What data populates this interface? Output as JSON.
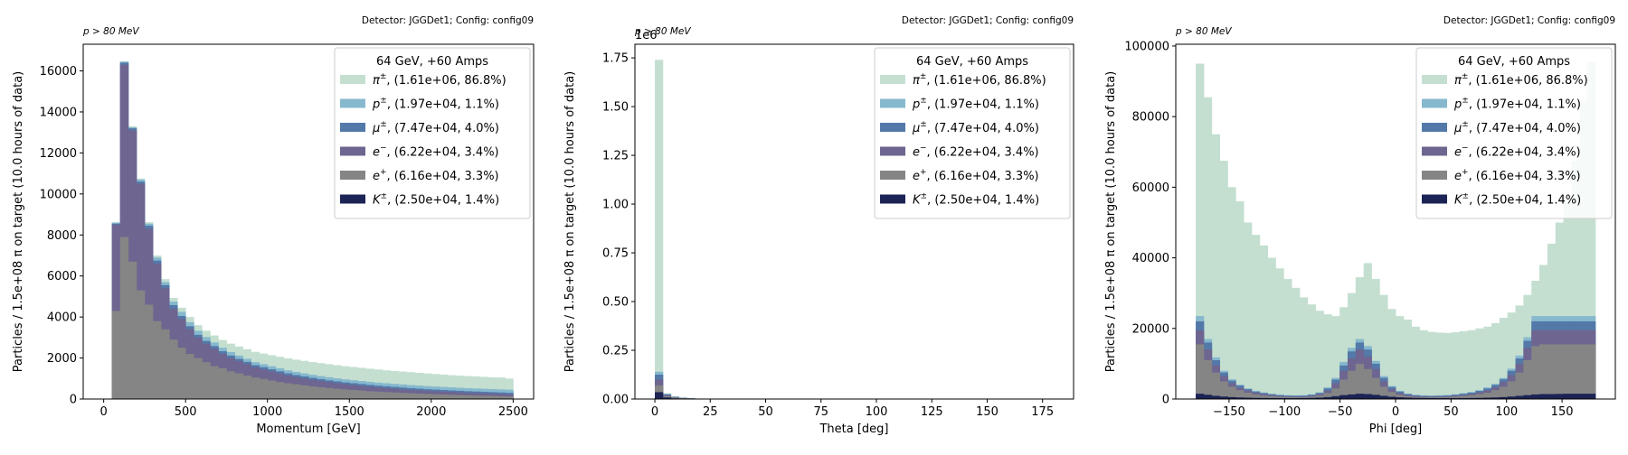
{
  "colors": {
    "pi": "#c4dfd0",
    "p": "#86b8ce",
    "mu": "#5379a9",
    "em": "#6e6590",
    "ep": "#858585",
    "k": "#1c2355"
  },
  "legend": {
    "title": "64 GeV, +60 Amps",
    "entries": [
      {
        "key": "pi",
        "sym": "π",
        "sup": "±",
        "text": ", (1.61e+06, 86.8%)"
      },
      {
        "key": "p",
        "sym": "p",
        "sup": "±",
        "text": ", (1.97e+04, 1.1%)"
      },
      {
        "key": "mu",
        "sym": "μ",
        "sup": "±",
        "text": ", (7.47e+04, 4.0%)"
      },
      {
        "key": "em",
        "sym": "e",
        "sup": "−",
        "text": ", (6.22e+04, 3.4%)"
      },
      {
        "key": "ep",
        "sym": "e",
        "sup": "+",
        "text": ", (6.16e+04, 3.3%)"
      },
      {
        "key": "k",
        "sym": "K",
        "sup": "±",
        "text": ", (2.50e+04, 1.4%)"
      }
    ]
  },
  "panels": {
    "cut_label": "p > 80 MeV",
    "detector_label": "Detector: JGGDet1; Config: config09",
    "ylabel": "Particles / 1.5e+08 π on target (10.0 hours of data)"
  },
  "chart_data": [
    {
      "type": "bar",
      "title": "",
      "xlabel": "Momentum [GeV]",
      "ylabel": "Particles / 1.5e+08 π on target (10.0 hours of data)",
      "xlim": [
        -125,
        2625
      ],
      "ylim": [
        0,
        17300
      ],
      "xticks": [
        0,
        500,
        1000,
        1500,
        2000,
        2500
      ],
      "yticks": [
        0,
        2000,
        4000,
        6000,
        8000,
        10000,
        12000,
        14000,
        16000
      ],
      "bin_edges_start": 50,
      "bin_width": 50,
      "stack_order": [
        "ep",
        "em",
        "mu",
        "p",
        "pi"
      ],
      "series_totals_cumulative": {
        "ep": [
          4300,
          7900,
          6700,
          5300,
          4600,
          3800,
          3400,
          2900,
          2500,
          2200,
          2000,
          1800,
          1600,
          1500,
          1350,
          1250,
          1150,
          1050,
          980,
          900,
          830,
          770,
          720,
          670,
          620,
          580,
          540,
          500,
          470,
          440,
          410,
          380,
          360,
          340,
          320,
          300,
          280,
          265,
          250,
          235,
          220,
          205,
          195,
          180,
          170,
          160,
          150,
          140,
          130
        ],
        "em": [
          8500,
          16300,
          13100,
          10500,
          8300,
          6600,
          5400,
          4400,
          3900,
          3400,
          3000,
          2700,
          2450,
          2200,
          2000,
          1850,
          1700,
          1550,
          1450,
          1350,
          1250,
          1150,
          1070,
          1000,
          940,
          880,
          820,
          770,
          720,
          680,
          640,
          600,
          565,
          530,
          500,
          470,
          445,
          420,
          400,
          380,
          360,
          340,
          320,
          305,
          290,
          275,
          260,
          245,
          230
        ],
        "mu": [
          8550,
          16400,
          13200,
          10600,
          8450,
          6750,
          5550,
          4580,
          4050,
          3550,
          3130,
          2830,
          2580,
          2330,
          2120,
          1960,
          1810,
          1650,
          1550,
          1450,
          1350,
          1250,
          1170,
          1100,
          1030,
          970,
          910,
          860,
          810,
          770,
          730,
          690,
          650,
          620,
          590,
          560,
          530,
          505,
          480,
          460,
          440,
          420,
          400,
          380,
          365,
          350,
          335,
          320,
          305
        ],
        "p": [
          8600,
          16450,
          13250,
          10700,
          8550,
          6900,
          5700,
          4750,
          4250,
          3750,
          3330,
          3020,
          2760,
          2500,
          2290,
          2120,
          1960,
          1800,
          1700,
          1600,
          1500,
          1400,
          1320,
          1250,
          1180,
          1120,
          1060,
          1010,
          960,
          920,
          880,
          840,
          800,
          770,
          740,
          710,
          680,
          655,
          630,
          610,
          590,
          570,
          550,
          530,
          515,
          500,
          485,
          470,
          455
        ],
        "pi": [
          8620,
          16470,
          13300,
          10750,
          8620,
          7000,
          5850,
          4930,
          4450,
          4000,
          3600,
          3330,
          3100,
          2880,
          2700,
          2560,
          2430,
          2300,
          2220,
          2140,
          2060,
          1980,
          1920,
          1860,
          1800,
          1750,
          1700,
          1650,
          1600,
          1560,
          1520,
          1480,
          1440,
          1400,
          1370,
          1340,
          1310,
          1280,
          1250,
          1220,
          1190,
          1160,
          1140,
          1120,
          1100,
          1080,
          1060,
          1050,
          1000
        ]
      }
    },
    {
      "type": "bar",
      "title": "",
      "xlabel": "Theta [deg]",
      "ylabel": "Particles / 1.5e+08 π on target (10.0 hours of data)",
      "xlim": [
        -9,
        189
      ],
      "ylim": [
        0,
        1820000
      ],
      "xticks": [
        0,
        25,
        50,
        75,
        100,
        125,
        150,
        175
      ],
      "yticks": [
        0,
        250000,
        500000,
        750000,
        1000000,
        1250000,
        1500000,
        1750000
      ],
      "ytick_labels": [
        "0.00",
        "0.25",
        "0.50",
        "0.75",
        "1.00",
        "1.25",
        "1.50",
        "1.75"
      ],
      "offset_label": "1e6",
      "bin_edges_start": 0,
      "bin_width": 3.6,
      "stack_order": [
        "k",
        "ep",
        "em",
        "mu",
        "p",
        "pi"
      ],
      "series_totals_cumulative": {
        "k": [
          35000,
          8000,
          3000,
          1500,
          800,
          400,
          200,
          100,
          50,
          0
        ],
        "ep": [
          70000,
          15000,
          7000,
          4000,
          2500,
          1500,
          800,
          400,
          200,
          0
        ],
        "em": [
          100000,
          20000,
          9000,
          5000,
          3000,
          1800,
          1000,
          500,
          250,
          0
        ],
        "mu": [
          125000,
          24000,
          11000,
          6000,
          3600,
          2200,
          1200,
          600,
          300,
          0
        ],
        "p": [
          140000,
          26000,
          12000,
          6500,
          3900,
          2400,
          1300,
          650,
          320,
          0
        ],
        "pi": [
          1740000,
          30000,
          15000,
          8000,
          4500,
          2600,
          1400,
          700,
          350,
          0
        ]
      }
    },
    {
      "type": "bar",
      "title": "",
      "xlabel": "Phi [deg]",
      "ylabel": "Particles / 1.5e+08 π on target (10.0 hours of data)",
      "xlim": [
        -198,
        198
      ],
      "ylim": [
        0,
        100500
      ],
      "xticks": [
        -150,
        -100,
        -50,
        0,
        50,
        100,
        150
      ],
      "xtick_labels": [
        "−150",
        "−100",
        "−50",
        "0",
        "50",
        "100",
        "150"
      ],
      "yticks": [
        0,
        20000,
        40000,
        60000,
        80000,
        100000
      ],
      "bin_edges_start": -180,
      "bin_width": 7.2,
      "stack_order": [
        "k",
        "ep",
        "em",
        "mu",
        "p",
        "pi"
      ],
      "series_totals_cumulative": {
        "k": [
          1500,
          1200,
          900,
          700,
          550,
          450,
          380,
          330,
          300,
          280,
          270,
          260,
          260,
          280,
          320,
          400,
          550,
          800,
          1100,
          1300,
          1500,
          1400,
          1200,
          900,
          650,
          500,
          400,
          330,
          290,
          270,
          260,
          260,
          270,
          280,
          300,
          330,
          380,
          450,
          550,
          700,
          900,
          1100,
          1300,
          1400,
          1400,
          1450,
          1500,
          1500,
          1500,
          1500
        ],
        "ep": [
          15500,
          11000,
          7500,
          5000,
          3500,
          2500,
          1800,
          1300,
          1000,
          800,
          650,
          550,
          500,
          550,
          700,
          1000,
          1700,
          3000,
          5500,
          8000,
          10000,
          8500,
          6000,
          3500,
          2000,
          1200,
          800,
          600,
          500,
          480,
          500,
          580,
          700,
          900,
          1100,
          1400,
          1800,
          2500,
          3500,
          5000,
          7500,
          11000,
          15000,
          15500,
          15500,
          15500,
          15500,
          15500,
          15500,
          15500
        ],
        "em": [
          19500,
          14000,
          9500,
          6500,
          4500,
          3200,
          2400,
          1800,
          1400,
          1100,
          900,
          750,
          700,
          750,
          950,
          1400,
          2400,
          4500,
          8000,
          11500,
          14000,
          12000,
          8500,
          5000,
          2800,
          1700,
          1100,
          850,
          700,
          680,
          700,
          800,
          950,
          1200,
          1500,
          1900,
          2500,
          3400,
          4800,
          6800,
          10000,
          14500,
          19500,
          19500,
          19500,
          19500,
          19500,
          19500,
          19500,
          19500
        ],
        "mu": [
          22000,
          16000,
          11000,
          7500,
          5200,
          3800,
          2800,
          2100,
          1700,
          1350,
          1100,
          950,
          900,
          950,
          1200,
          1700,
          3000,
          5500,
          9500,
          13500,
          16000,
          14000,
          10000,
          6000,
          3400,
          2100,
          1400,
          1050,
          900,
          850,
          900,
          1000,
          1200,
          1500,
          1800,
          2300,
          3000,
          4000,
          5600,
          8000,
          11500,
          16500,
          22000,
          22000,
          22000,
          22000,
          22000,
          22000,
          22000,
          22000
        ],
        "p": [
          23500,
          17000,
          11800,
          8000,
          5600,
          4100,
          3000,
          2300,
          1850,
          1500,
          1250,
          1100,
          1050,
          1100,
          1350,
          1900,
          3300,
          6000,
          10500,
          14500,
          17000,
          15000,
          10800,
          6500,
          3700,
          2300,
          1550,
          1200,
          1050,
          1000,
          1050,
          1150,
          1350,
          1650,
          2000,
          2500,
          3300,
          4300,
          6000,
          8600,
          12300,
          17500,
          23500,
          23500,
          23500,
          23500,
          23500,
          23500,
          23500,
          23500
        ],
        "pi": [
          95000,
          85500,
          75000,
          67500,
          60000,
          56000,
          50000,
          46500,
          43500,
          40000,
          37000,
          34000,
          31500,
          28800,
          26800,
          25000,
          24000,
          23500,
          26000,
          30000,
          34500,
          38500,
          34000,
          29500,
          25500,
          23500,
          22500,
          20500,
          19500,
          19000,
          18800,
          18700,
          18900,
          19200,
          19500,
          20000,
          20500,
          21500,
          23000,
          24500,
          26500,
          29500,
          33500,
          38000,
          44000,
          50000,
          56000,
          67500,
          84500,
          95500
        ]
      }
    }
  ]
}
